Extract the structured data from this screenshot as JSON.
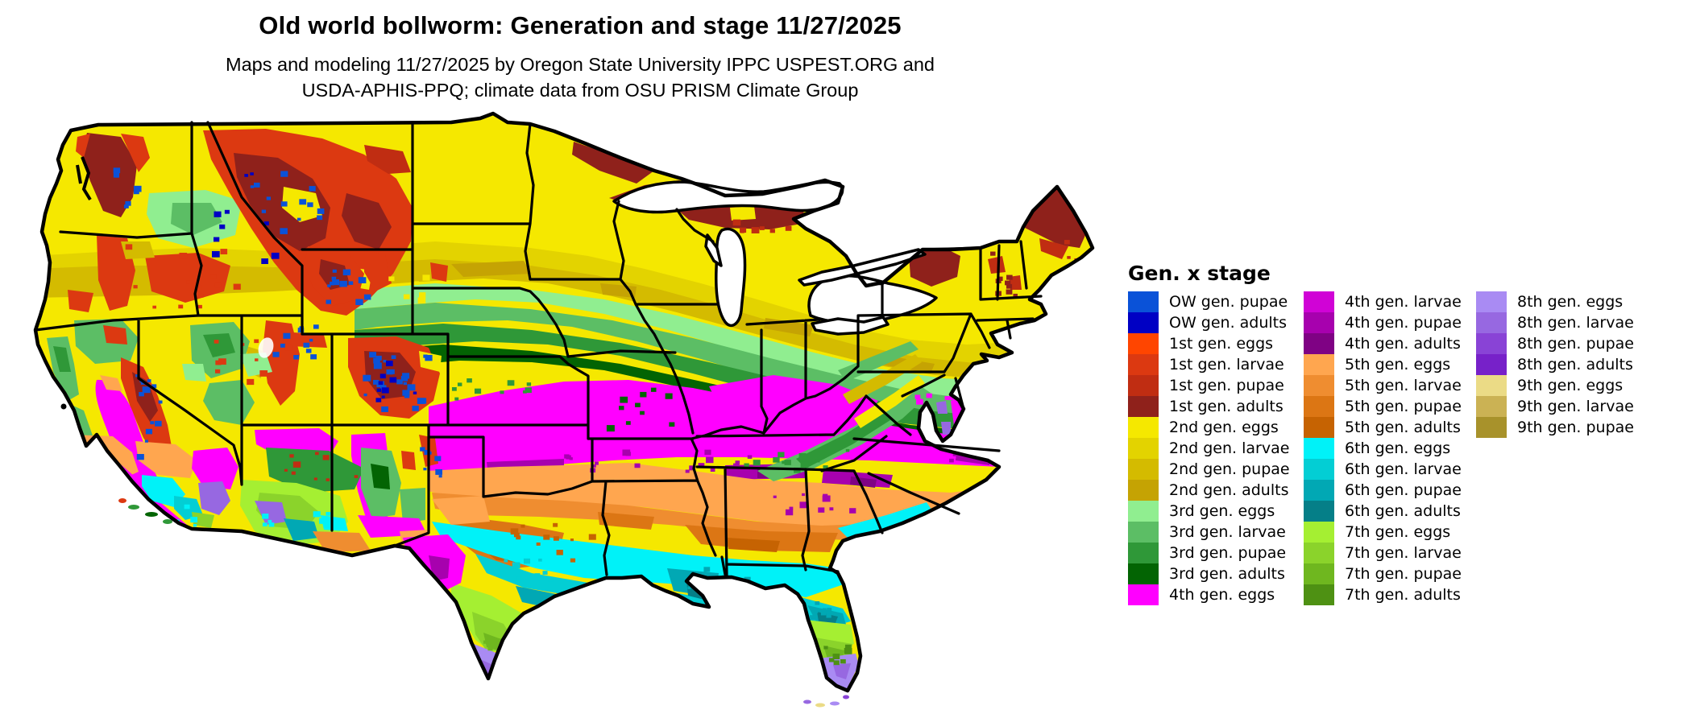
{
  "title": "Old world bollworm: Generation and stage 11/27/2025",
  "subtitle_line1": "Maps and modeling 11/27/2025 by Oregon State University IPPC USPEST.ORG and",
  "subtitle_line2": "USDA-APHIS-PPQ; climate data from OSU PRISM Climate Group",
  "legend": {
    "title": "Gen. x stage",
    "columns": [
      [
        {
          "label": "OW gen. pupae",
          "color": "#0A52D8"
        },
        {
          "label": "OW gen. adults",
          "color": "#0000C4"
        },
        {
          "label": "1st gen. eggs",
          "color": "#FF4500"
        },
        {
          "label": "1st gen. larvae",
          "color": "#DC3911"
        },
        {
          "label": "1st gen. pupae",
          "color": "#C02D12"
        },
        {
          "label": "1st gen. adults",
          "color": "#8F211B"
        },
        {
          "label": "2nd gen. eggs",
          "color": "#F5E800"
        },
        {
          "label": "2nd gen. larvae",
          "color": "#E3D300"
        },
        {
          "label": "2nd gen. pupae",
          "color": "#D4BB00"
        },
        {
          "label": "2nd gen. adults",
          "color": "#C5A303"
        },
        {
          "label": "3rd gen. eggs",
          "color": "#90EE90"
        },
        {
          "label": "3rd gen. larvae",
          "color": "#5CBE65"
        },
        {
          "label": "3rd gen. pupae",
          "color": "#2F9838"
        },
        {
          "label": "3rd gen. adults",
          "color": "#036403"
        },
        {
          "label": "4th gen. eggs",
          "color": "#FF00FF"
        }
      ],
      [
        {
          "label": "4th gen. larvae",
          "color": "#D003D6"
        },
        {
          "label": "4th gen. pupae",
          "color": "#A701AE"
        },
        {
          "label": "4th gen. adults",
          "color": "#7F0284"
        },
        {
          "label": "5th gen. eggs",
          "color": "#FFA64F"
        },
        {
          "label": "5th gen. larvae",
          "color": "#EF8D30"
        },
        {
          "label": "5th gen. pupae",
          "color": "#DC7614"
        },
        {
          "label": "5th gen. adults",
          "color": "#C66302"
        },
        {
          "label": "6th gen. eggs",
          "color": "#00F2F8"
        },
        {
          "label": "6th gen. larvae",
          "color": "#03CED4"
        },
        {
          "label": "6th gen. pupae",
          "color": "#01A8B4"
        },
        {
          "label": "6th gen. adults",
          "color": "#057F88"
        },
        {
          "label": "7th gen. eggs",
          "color": "#A5EF32"
        },
        {
          "label": "7th gen. larvae",
          "color": "#8BD32B"
        },
        {
          "label": "7th gen. pupae",
          "color": "#6FB71F"
        },
        {
          "label": "7th gen. adults",
          "color": "#4E9113"
        }
      ],
      [
        {
          "label": "8th gen. eggs",
          "color": "#A98BF3"
        },
        {
          "label": "8th gen. larvae",
          "color": "#9768E1"
        },
        {
          "label": "8th gen. pupae",
          "color": "#8943D6"
        },
        {
          "label": "8th gen. adults",
          "color": "#7721C9"
        },
        {
          "label": "9th gen. eggs",
          "color": "#EBDB86"
        },
        {
          "label": "9th gen. larvae",
          "color": "#CBB254"
        },
        {
          "label": "9th gen. pupae",
          "color": "#A8922B"
        }
      ]
    ]
  },
  "map": {
    "water_color": "#FFFFFF",
    "state_border_color": "#000000",
    "palette": {
      "ow_pupae": "#0A52D8",
      "ow_adults": "#0000C4",
      "g1_eggs": "#FF4500",
      "g1_larvae": "#DC3911",
      "g1_pupae": "#C02D12",
      "g1_adults": "#8F211B",
      "g2_eggs": "#F5E800",
      "g2_larvae": "#E3D300",
      "g2_pupae": "#D4BB00",
      "g2_adults": "#C5A303",
      "g3_eggs": "#90EE90",
      "g3_larvae": "#5CBE65",
      "g3_pupae": "#2F9838",
      "g3_adults": "#036403",
      "g4_eggs": "#FF00FF",
      "g4_larvae": "#D003D6",
      "g4_pupae": "#A701AE",
      "g4_adults": "#7F0284",
      "g5_eggs": "#FFA64F",
      "g5_larvae": "#EF8D30",
      "g5_pupae": "#DC7614",
      "g5_adults": "#C66302",
      "g6_eggs": "#00F2F8",
      "g6_larvae": "#03CED4",
      "g6_pupae": "#01A8B4",
      "g6_adults": "#057F88",
      "g7_eggs": "#A5EF32",
      "g7_larvae": "#8BD32B",
      "g7_pupae": "#6FB71F",
      "g7_adults": "#4E9113",
      "g8_eggs": "#A98BF3",
      "g8_larvae": "#9768E1",
      "g8_pupae": "#8943D6",
      "g8_adults": "#7721C9",
      "g9_eggs": "#EBDB86",
      "g9_larvae": "#CBB254",
      "g9_pupae": "#A8922B"
    }
  }
}
